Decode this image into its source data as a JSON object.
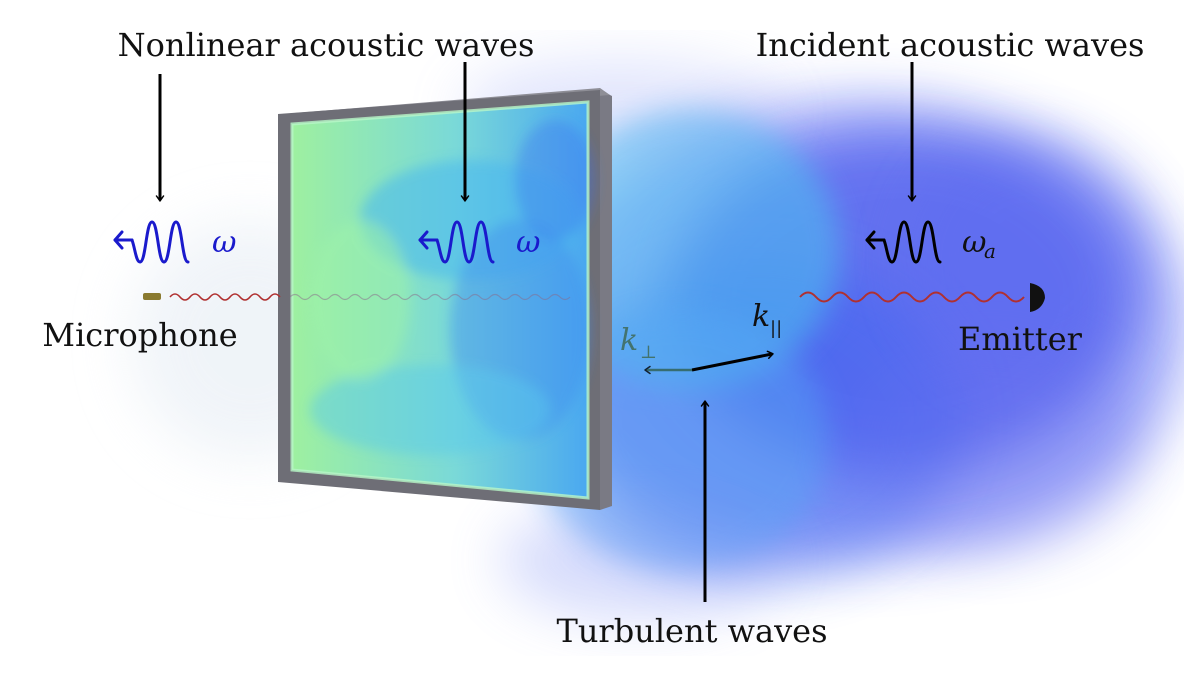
{
  "labels": {
    "nonlinear": "Nonlinear acoustic waves",
    "incident": "Incident acoustic waves",
    "microphone": "Microphone",
    "emitter": "Emitter",
    "turbulent": "Turbulent waves"
  },
  "symbols": {
    "omega_left": "ω",
    "omega_mid": "ω",
    "omega_a_base": "ω",
    "omega_a_sub": "a",
    "k_perp_base": "k",
    "k_perp_sub": "⊥",
    "k_par_base": "k",
    "k_par_sub": "||"
  },
  "colors": {
    "wave_blue": "#1a1acc",
    "wave_black": "#000000",
    "ripple_red": "#b03030",
    "cloud_blue": "#3a4cf0",
    "cloud_cyan": "#4fd6f0",
    "cloud_green": "#7ee8a8",
    "frame_gray": "#6e6e76"
  },
  "icons": {
    "microphone": "microphone-icon",
    "emitter": "emitter-icon"
  }
}
